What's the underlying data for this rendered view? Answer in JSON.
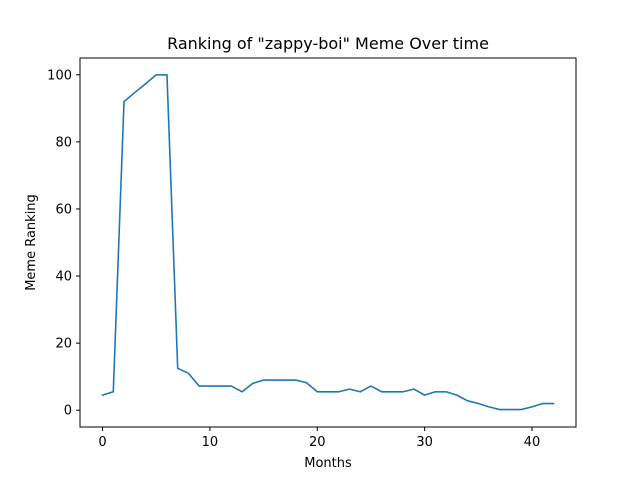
{
  "chart_data": {
    "type": "line",
    "title": "Ranking of \"zappy-boi\" Meme Over time",
    "xlabel": "Months",
    "ylabel": "Meme Ranking",
    "xlim": [
      -2.1,
      44.1
    ],
    "ylim": [
      -5,
      105
    ],
    "xticks": [
      0,
      10,
      20,
      30,
      40
    ],
    "yticks": [
      0,
      20,
      40,
      60,
      80,
      100
    ],
    "grid": false,
    "series": [
      {
        "color": "#1f77b4",
        "x": [
          0,
          1,
          2,
          3,
          4,
          5,
          6,
          7,
          8,
          9,
          10,
          11,
          12,
          13,
          14,
          15,
          16,
          17,
          18,
          19,
          20,
          21,
          22,
          23,
          24,
          25,
          26,
          27,
          28,
          29,
          30,
          31,
          32,
          33,
          34,
          35,
          36,
          37,
          38,
          39,
          40,
          41,
          42
        ],
        "values": [
          4.5,
          5.5,
          92,
          94.7,
          97.3,
          100,
          100,
          12.5,
          11,
          7.2,
          7.2,
          7.2,
          7.2,
          5.5,
          8,
          9,
          9,
          9,
          9,
          8.2,
          5.5,
          5.5,
          5.5,
          6.3,
          5.5,
          7.2,
          5.5,
          5.5,
          5.5,
          6.3,
          4.5,
          5.5,
          5.5,
          4.5,
          2.8,
          2,
          1,
          0.2,
          0.2,
          0.2,
          1,
          2,
          2
        ]
      }
    ]
  }
}
